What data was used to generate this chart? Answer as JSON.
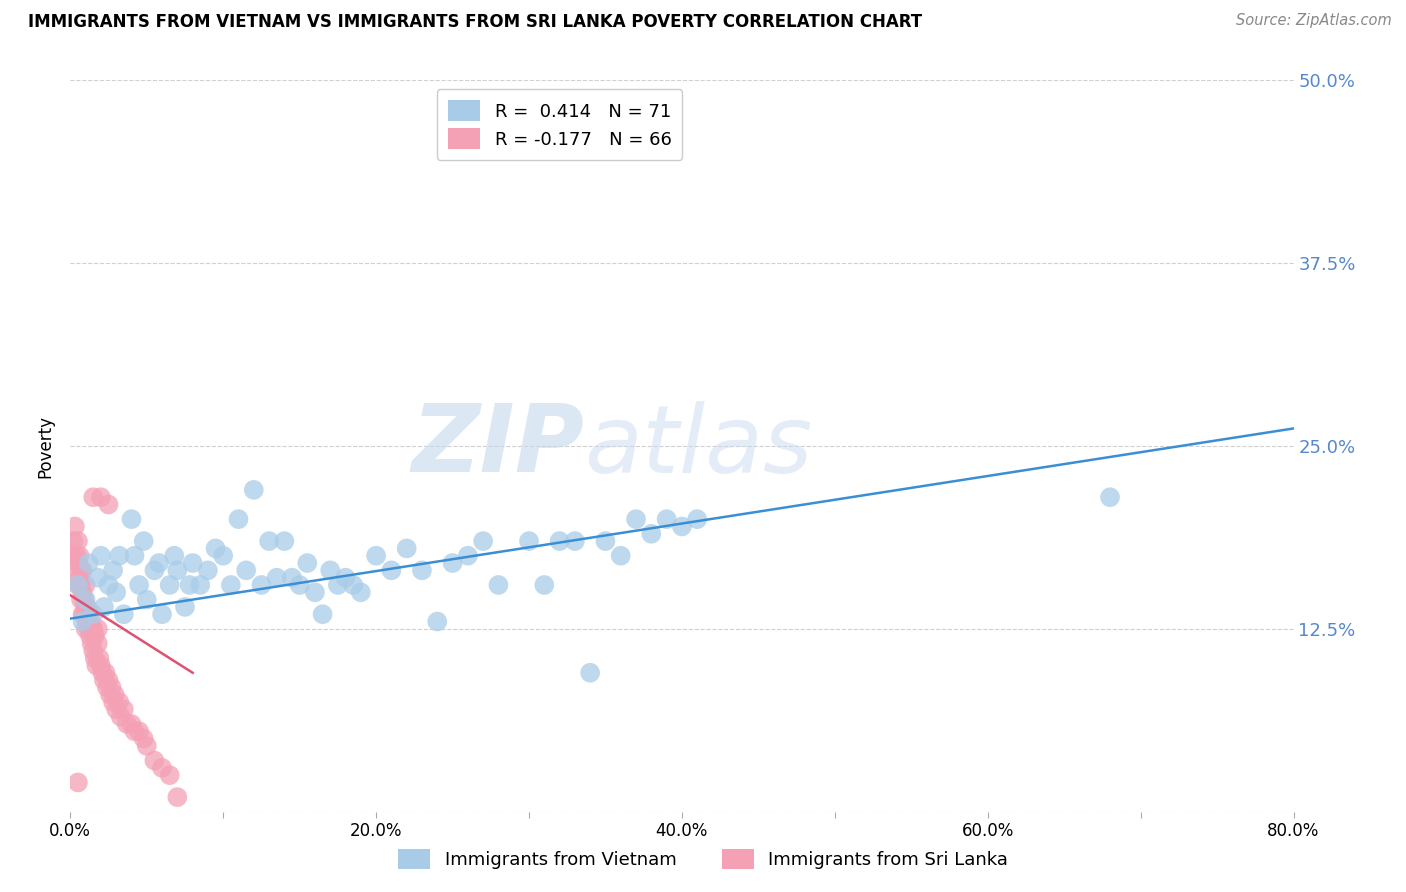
{
  "title": "IMMIGRANTS FROM VIETNAM VS IMMIGRANTS FROM SRI LANKA POVERTY CORRELATION CHART",
  "source": "Source: ZipAtlas.com",
  "ylabel": "Poverty",
  "xlim": [
    0.0,
    0.8
  ],
  "ylim": [
    0.0,
    0.5
  ],
  "yticks": [
    0.0,
    0.125,
    0.25,
    0.375,
    0.5
  ],
  "ytick_labels": [
    "",
    "12.5%",
    "25.0%",
    "37.5%",
    "50.0%"
  ],
  "xticks": [
    0.0,
    0.1,
    0.2,
    0.3,
    0.4,
    0.5,
    0.6,
    0.7,
    0.8
  ],
  "xtick_labels": [
    "0.0%",
    "",
    "20.0%",
    "",
    "40.0%",
    "",
    "60.0%",
    "",
    "80.0%"
  ],
  "vietnam_color": "#A8CCE8",
  "srilanka_color": "#F4A0B5",
  "trend_vietnam_color": "#3A8FD4",
  "trend_srilanka_color": "#E05070",
  "R_vietnam": 0.414,
  "N_vietnam": 71,
  "R_srilanka": -0.177,
  "N_srilanka": 66,
  "background_color": "#ffffff",
  "grid_color": "#d0d0d0",
  "watermark_zip": "ZIP",
  "watermark_atlas": "atlas",
  "legend_label_vietnam": "Immigrants from Vietnam",
  "legend_label_srilanka": "Immigrants from Sri Lanka",
  "vietnam_x": [
    0.005,
    0.008,
    0.01,
    0.012,
    0.015,
    0.018,
    0.02,
    0.022,
    0.025,
    0.028,
    0.03,
    0.032,
    0.035,
    0.04,
    0.042,
    0.045,
    0.048,
    0.05,
    0.055,
    0.058,
    0.06,
    0.065,
    0.068,
    0.07,
    0.075,
    0.078,
    0.08,
    0.085,
    0.09,
    0.095,
    0.1,
    0.105,
    0.11,
    0.115,
    0.12,
    0.125,
    0.13,
    0.135,
    0.14,
    0.145,
    0.15,
    0.155,
    0.16,
    0.165,
    0.17,
    0.175,
    0.18,
    0.185,
    0.19,
    0.2,
    0.21,
    0.22,
    0.23,
    0.24,
    0.25,
    0.26,
    0.27,
    0.28,
    0.3,
    0.31,
    0.32,
    0.33,
    0.34,
    0.35,
    0.36,
    0.37,
    0.38,
    0.39,
    0.4,
    0.41,
    0.68
  ],
  "vietnam_y": [
    0.155,
    0.13,
    0.145,
    0.17,
    0.135,
    0.16,
    0.175,
    0.14,
    0.155,
    0.165,
    0.15,
    0.175,
    0.135,
    0.2,
    0.175,
    0.155,
    0.185,
    0.145,
    0.165,
    0.17,
    0.135,
    0.155,
    0.175,
    0.165,
    0.14,
    0.155,
    0.17,
    0.155,
    0.165,
    0.18,
    0.175,
    0.155,
    0.2,
    0.165,
    0.22,
    0.155,
    0.185,
    0.16,
    0.185,
    0.16,
    0.155,
    0.17,
    0.15,
    0.135,
    0.165,
    0.155,
    0.16,
    0.155,
    0.15,
    0.175,
    0.165,
    0.18,
    0.165,
    0.13,
    0.17,
    0.175,
    0.185,
    0.155,
    0.185,
    0.155,
    0.185,
    0.185,
    0.095,
    0.185,
    0.175,
    0.2,
    0.19,
    0.2,
    0.195,
    0.2,
    0.215
  ],
  "srilanka_x": [
    0.002,
    0.003,
    0.003,
    0.004,
    0.004,
    0.005,
    0.005,
    0.005,
    0.006,
    0.006,
    0.006,
    0.007,
    0.007,
    0.007,
    0.008,
    0.008,
    0.008,
    0.009,
    0.009,
    0.01,
    0.01,
    0.01,
    0.011,
    0.011,
    0.012,
    0.012,
    0.013,
    0.013,
    0.014,
    0.014,
    0.015,
    0.015,
    0.016,
    0.016,
    0.017,
    0.018,
    0.018,
    0.019,
    0.02,
    0.021,
    0.022,
    0.023,
    0.024,
    0.025,
    0.026,
    0.027,
    0.028,
    0.029,
    0.03,
    0.032,
    0.033,
    0.035,
    0.037,
    0.04,
    0.042,
    0.045,
    0.048,
    0.05,
    0.055,
    0.06,
    0.065,
    0.07,
    0.015,
    0.02,
    0.025,
    0.005
  ],
  "srilanka_y": [
    0.185,
    0.175,
    0.195,
    0.165,
    0.175,
    0.155,
    0.17,
    0.185,
    0.16,
    0.175,
    0.155,
    0.165,
    0.145,
    0.155,
    0.135,
    0.15,
    0.165,
    0.135,
    0.145,
    0.14,
    0.125,
    0.155,
    0.13,
    0.14,
    0.125,
    0.135,
    0.12,
    0.13,
    0.115,
    0.125,
    0.11,
    0.125,
    0.105,
    0.12,
    0.1,
    0.115,
    0.125,
    0.105,
    0.1,
    0.095,
    0.09,
    0.095,
    0.085,
    0.09,
    0.08,
    0.085,
    0.075,
    0.08,
    0.07,
    0.075,
    0.065,
    0.07,
    0.06,
    0.06,
    0.055,
    0.055,
    0.05,
    0.045,
    0.035,
    0.03,
    0.025,
    0.01,
    0.215,
    0.215,
    0.21,
    0.02
  ],
  "vietnam_trend_x": [
    0.0,
    0.8
  ],
  "vietnam_trend_y": [
    0.132,
    0.262
  ],
  "srilanka_trend_x": [
    0.0,
    0.08
  ],
  "srilanka_trend_y": [
    0.148,
    0.095
  ]
}
